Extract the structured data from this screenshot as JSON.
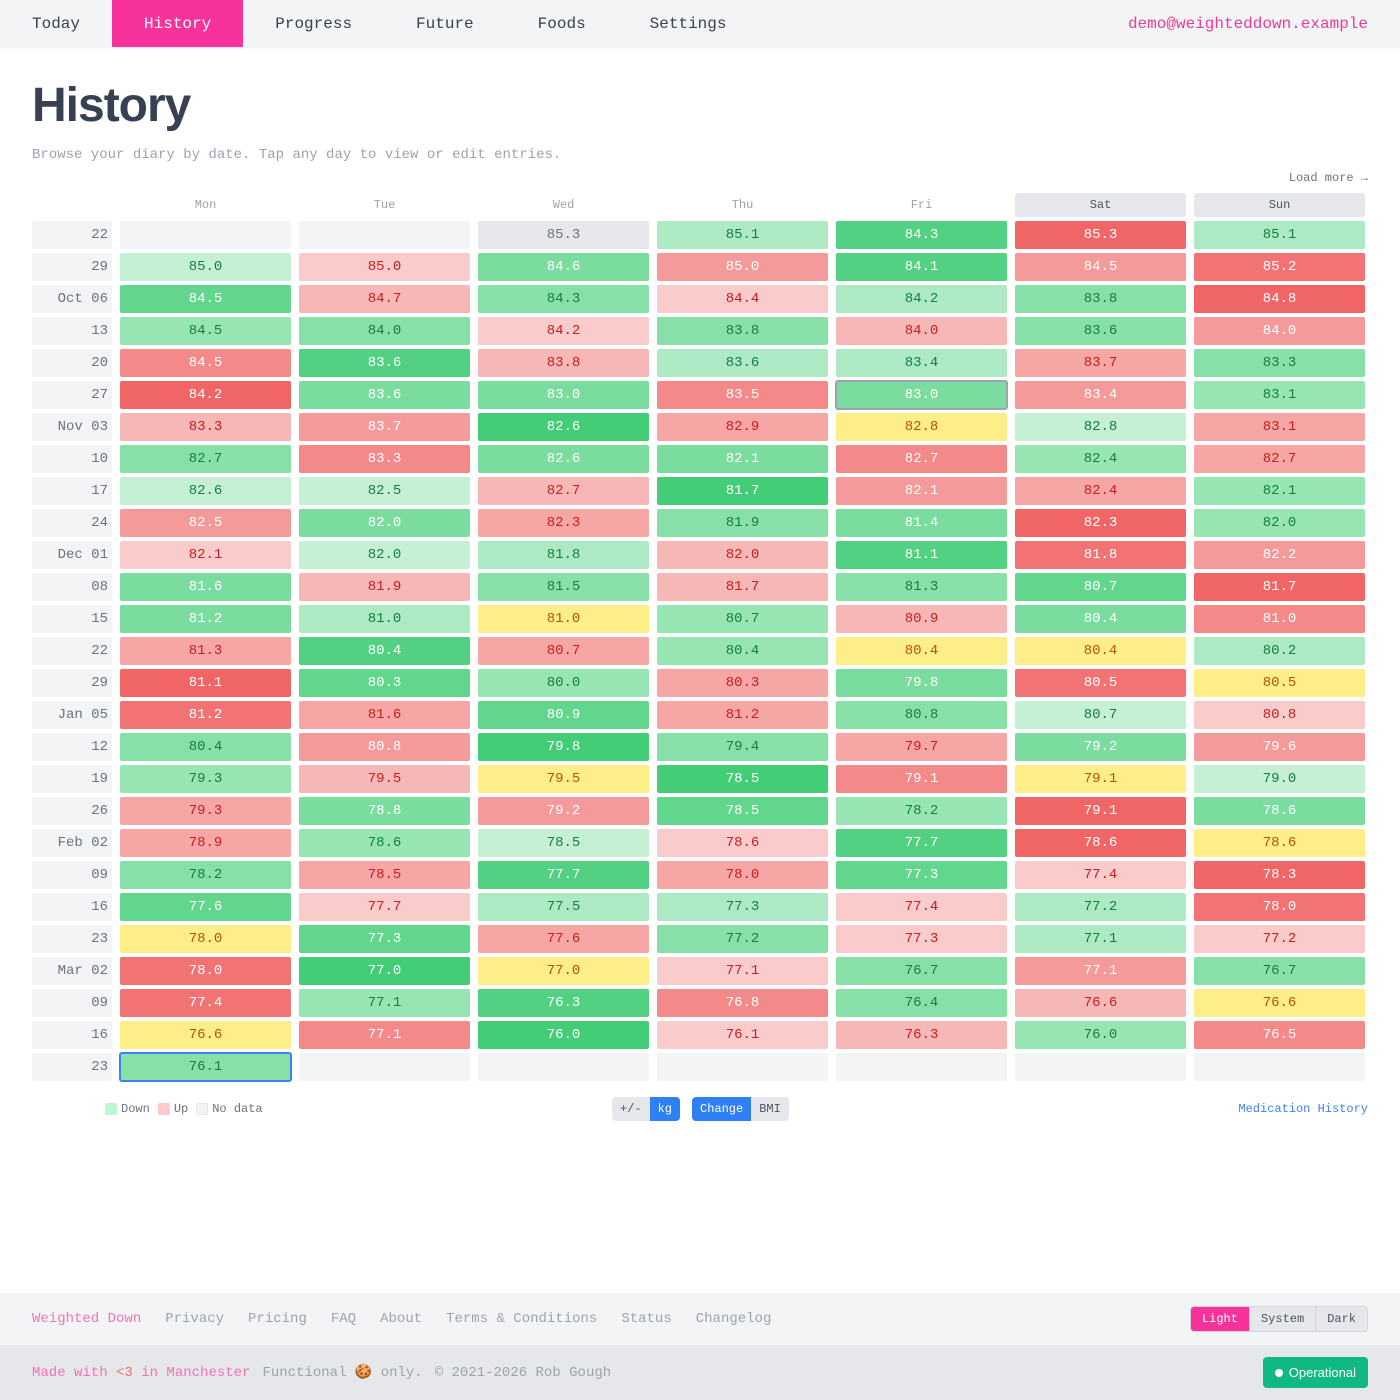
{
  "nav": {
    "items": [
      {
        "label": "Today",
        "active": false
      },
      {
        "label": "History",
        "active": true
      },
      {
        "label": "Progress",
        "active": false
      },
      {
        "label": "Future",
        "active": false
      },
      {
        "label": "Foods",
        "active": false
      },
      {
        "label": "Settings",
        "active": false
      }
    ],
    "user_email": "demo@weighteddown.example"
  },
  "page": {
    "title": "History",
    "subtitle": "Browse your diary by date. Tap any day to view or edit entries.",
    "load_more": "Load more →"
  },
  "grid": {
    "days": [
      "Mon",
      "Tue",
      "Wed",
      "Thu",
      "Fri",
      "Sat",
      "Sun"
    ],
    "weekend_days": [
      "Sat",
      "Sun"
    ],
    "rows": [
      {
        "label": "22",
        "cells": [
          [
            "",
            "e"
          ],
          [
            "",
            "e"
          ],
          [
            "85.3",
            "n"
          ],
          [
            "85.1",
            "g2"
          ],
          [
            "84.3",
            "g7"
          ],
          [
            "85.3",
            "r7"
          ],
          [
            "85.1",
            "g2"
          ]
        ]
      },
      {
        "label": "29",
        "cells": [
          [
            "85.0",
            "g1"
          ],
          [
            "85.0",
            "r1"
          ],
          [
            "84.6",
            "g5"
          ],
          [
            "85.0",
            "r4"
          ],
          [
            "84.1",
            "g7"
          ],
          [
            "84.5",
            "r4"
          ],
          [
            "85.2",
            "r6"
          ]
        ]
      },
      {
        "label": "Oct 06",
        "cells": [
          [
            "84.5",
            "g6"
          ],
          [
            "84.7",
            "r2"
          ],
          [
            "84.3",
            "g4"
          ],
          [
            "84.4",
            "r1"
          ],
          [
            "84.2",
            "g2"
          ],
          [
            "83.8",
            "g4"
          ],
          [
            "84.8",
            "r7"
          ]
        ]
      },
      {
        "label": "13",
        "cells": [
          [
            "84.5",
            "g3"
          ],
          [
            "84.0",
            "g4"
          ],
          [
            "84.2",
            "r1"
          ],
          [
            "83.8",
            "g4"
          ],
          [
            "84.0",
            "r2"
          ],
          [
            "83.6",
            "g4"
          ],
          [
            "84.0",
            "r4"
          ]
        ]
      },
      {
        "label": "20",
        "cells": [
          [
            "84.5",
            "r5"
          ],
          [
            "83.6",
            "g7"
          ],
          [
            "83.8",
            "r2"
          ],
          [
            "83.6",
            "g2"
          ],
          [
            "83.4",
            "g2"
          ],
          [
            "83.7",
            "r3"
          ],
          [
            "83.3",
            "g4"
          ]
        ]
      },
      {
        "label": "27",
        "cells": [
          [
            "84.2",
            "r7"
          ],
          [
            "83.6",
            "g5"
          ],
          [
            "83.0",
            "g5"
          ],
          [
            "83.5",
            "r5"
          ],
          [
            "83.0",
            "g5",
            "selected"
          ],
          [
            "83.4",
            "r4"
          ],
          [
            "83.1",
            "g3"
          ]
        ]
      },
      {
        "label": "Nov 03",
        "cells": [
          [
            "83.3",
            "r2"
          ],
          [
            "83.7",
            "r4"
          ],
          [
            "82.6",
            "g8"
          ],
          [
            "82.9",
            "r3"
          ],
          [
            "82.8",
            "y"
          ],
          [
            "82.8",
            "g1"
          ],
          [
            "83.1",
            "r3"
          ]
        ]
      },
      {
        "label": "10",
        "cells": [
          [
            "82.7",
            "g4"
          ],
          [
            "83.3",
            "r5"
          ],
          [
            "82.6",
            "g5"
          ],
          [
            "82.1",
            "g5"
          ],
          [
            "82.7",
            "r5"
          ],
          [
            "82.4",
            "g3"
          ],
          [
            "82.7",
            "r3"
          ]
        ]
      },
      {
        "label": "17",
        "cells": [
          [
            "82.6",
            "g1"
          ],
          [
            "82.5",
            "g1"
          ],
          [
            "82.7",
            "r2"
          ],
          [
            "81.7",
            "g8"
          ],
          [
            "82.1",
            "r4"
          ],
          [
            "82.4",
            "r3"
          ],
          [
            "82.1",
            "g3"
          ]
        ]
      },
      {
        "label": "24",
        "cells": [
          [
            "82.5",
            "r4"
          ],
          [
            "82.0",
            "g5"
          ],
          [
            "82.3",
            "r3"
          ],
          [
            "81.9",
            "g4"
          ],
          [
            "81.4",
            "g5"
          ],
          [
            "82.3",
            "r7"
          ],
          [
            "82.0",
            "g3"
          ]
        ]
      },
      {
        "label": "Dec 01",
        "cells": [
          [
            "82.1",
            "r1"
          ],
          [
            "82.0",
            "g1"
          ],
          [
            "81.8",
            "g2"
          ],
          [
            "82.0",
            "r2"
          ],
          [
            "81.1",
            "g7"
          ],
          [
            "81.8",
            "r6"
          ],
          [
            "82.2",
            "r4"
          ]
        ]
      },
      {
        "label": "08",
        "cells": [
          [
            "81.6",
            "g5"
          ],
          [
            "81.9",
            "r2"
          ],
          [
            "81.5",
            "g4"
          ],
          [
            "81.7",
            "r2"
          ],
          [
            "81.3",
            "g4"
          ],
          [
            "80.7",
            "g6"
          ],
          [
            "81.7",
            "r7"
          ]
        ]
      },
      {
        "label": "15",
        "cells": [
          [
            "81.2",
            "g5"
          ],
          [
            "81.0",
            "g2"
          ],
          [
            "81.0",
            "y"
          ],
          [
            "80.7",
            "g3"
          ],
          [
            "80.9",
            "r2"
          ],
          [
            "80.4",
            "g5"
          ],
          [
            "81.0",
            "r5"
          ]
        ]
      },
      {
        "label": "22",
        "cells": [
          [
            "81.3",
            "r3"
          ],
          [
            "80.4",
            "g7"
          ],
          [
            "80.7",
            "r3"
          ],
          [
            "80.4",
            "g3"
          ],
          [
            "80.4",
            "y"
          ],
          [
            "80.4",
            "y"
          ],
          [
            "80.2",
            "g2"
          ]
        ]
      },
      {
        "label": "29",
        "cells": [
          [
            "81.1",
            "r7"
          ],
          [
            "80.3",
            "g6"
          ],
          [
            "80.0",
            "g3"
          ],
          [
            "80.3",
            "r3"
          ],
          [
            "79.8",
            "g5"
          ],
          [
            "80.5",
            "r6"
          ],
          [
            "80.5",
            "y"
          ]
        ]
      },
      {
        "label": "Jan 05",
        "cells": [
          [
            "81.2",
            "r6"
          ],
          [
            "81.6",
            "r3"
          ],
          [
            "80.9",
            "g6"
          ],
          [
            "81.2",
            "r3"
          ],
          [
            "80.8",
            "g4"
          ],
          [
            "80.7",
            "g1"
          ],
          [
            "80.8",
            "r1"
          ]
        ]
      },
      {
        "label": "12",
        "cells": [
          [
            "80.4",
            "g4"
          ],
          [
            "80.8",
            "r4"
          ],
          [
            "79.8",
            "g8"
          ],
          [
            "79.4",
            "g4"
          ],
          [
            "79.7",
            "r3"
          ],
          [
            "79.2",
            "g5"
          ],
          [
            "79.6",
            "r4"
          ]
        ]
      },
      {
        "label": "19",
        "cells": [
          [
            "79.3",
            "g3"
          ],
          [
            "79.5",
            "r2"
          ],
          [
            "79.5",
            "y"
          ],
          [
            "78.5",
            "g8"
          ],
          [
            "79.1",
            "r5"
          ],
          [
            "79.1",
            "y"
          ],
          [
            "79.0",
            "g1"
          ]
        ]
      },
      {
        "label": "26",
        "cells": [
          [
            "79.3",
            "r3"
          ],
          [
            "78.8",
            "g5"
          ],
          [
            "79.2",
            "r4"
          ],
          [
            "78.5",
            "g6"
          ],
          [
            "78.2",
            "g3"
          ],
          [
            "79.1",
            "r7"
          ],
          [
            "78.6",
            "g5"
          ]
        ]
      },
      {
        "label": "Feb 02",
        "cells": [
          [
            "78.9",
            "r3"
          ],
          [
            "78.6",
            "g3"
          ],
          [
            "78.5",
            "g1"
          ],
          [
            "78.6",
            "r1"
          ],
          [
            "77.7",
            "g7"
          ],
          [
            "78.6",
            "r7"
          ],
          [
            "78.6",
            "y"
          ]
        ]
      },
      {
        "label": "09",
        "cells": [
          [
            "78.2",
            "g4"
          ],
          [
            "78.5",
            "r3"
          ],
          [
            "77.7",
            "g7"
          ],
          [
            "78.0",
            "r3"
          ],
          [
            "77.3",
            "g6"
          ],
          [
            "77.4",
            "r1"
          ],
          [
            "78.3",
            "r7"
          ]
        ]
      },
      {
        "label": "16",
        "cells": [
          [
            "77.6",
            "g6"
          ],
          [
            "77.7",
            "r1"
          ],
          [
            "77.5",
            "g2"
          ],
          [
            "77.3",
            "g2"
          ],
          [
            "77.4",
            "r1"
          ],
          [
            "77.2",
            "g2"
          ],
          [
            "78.0",
            "r6"
          ]
        ]
      },
      {
        "label": "23",
        "cells": [
          [
            "78.0",
            "y"
          ],
          [
            "77.3",
            "g6"
          ],
          [
            "77.6",
            "r3"
          ],
          [
            "77.2",
            "g4"
          ],
          [
            "77.3",
            "r1"
          ],
          [
            "77.1",
            "g2"
          ],
          [
            "77.2",
            "r1"
          ]
        ]
      },
      {
        "label": "Mar 02",
        "cells": [
          [
            "78.0",
            "r6"
          ],
          [
            "77.0",
            "g8"
          ],
          [
            "77.0",
            "y"
          ],
          [
            "77.1",
            "r1"
          ],
          [
            "76.7",
            "g4"
          ],
          [
            "77.1",
            "r4"
          ],
          [
            "76.7",
            "g4"
          ]
        ]
      },
      {
        "label": "09",
        "cells": [
          [
            "77.4",
            "r6"
          ],
          [
            "77.1",
            "g3"
          ],
          [
            "76.3",
            "g7"
          ],
          [
            "76.8",
            "r5"
          ],
          [
            "76.4",
            "g4"
          ],
          [
            "76.6",
            "r2"
          ],
          [
            "76.6",
            "y"
          ]
        ]
      },
      {
        "label": "16",
        "cells": [
          [
            "76.6",
            "y"
          ],
          [
            "77.1",
            "r5"
          ],
          [
            "76.0",
            "g8"
          ],
          [
            "76.1",
            "r1"
          ],
          [
            "76.3",
            "r2"
          ],
          [
            "76.0",
            "g3"
          ],
          [
            "76.5",
            "r5"
          ]
        ]
      },
      {
        "label": "23",
        "cells": [
          [
            "76.1",
            "g4",
            "today"
          ],
          [
            "",
            "e"
          ],
          [
            "",
            "e"
          ],
          [
            "",
            "e"
          ],
          [
            "",
            "e"
          ],
          [
            "",
            "e"
          ],
          [
            "",
            "e"
          ]
        ]
      }
    ]
  },
  "legend": {
    "items": [
      {
        "label": "Down",
        "color": "#bbf7d0"
      },
      {
        "label": "Up",
        "color": "#fecaca"
      },
      {
        "label": "No data",
        "color": "#f3f4f6"
      }
    ]
  },
  "toggles": {
    "unit": {
      "options": [
        "+/-",
        "kg"
      ],
      "selected": "kg"
    },
    "mode": {
      "options": [
        "Change",
        "BMI"
      ],
      "selected": "Change"
    }
  },
  "medication_link": "Medication History",
  "footer": {
    "brand": "Weighted Down",
    "links": [
      "Privacy",
      "Pricing",
      "FAQ",
      "About",
      "Terms & Conditions",
      "Status",
      "Changelog"
    ],
    "theme": {
      "options": [
        "Light",
        "System",
        "Dark"
      ],
      "selected": "Light"
    },
    "made_with_prefix": "Made with ",
    "made_with_heart": "<3",
    "made_with_suffix": " in Manchester",
    "cookie_note": "Functional 🍪 only.",
    "copyright": "© 2021-2026 Rob Gough",
    "status_label": "Operational"
  },
  "colors": {
    "brand_pink": "#f7329a",
    "accent_blue": "#2f80f5",
    "status_green": "#10b981"
  }
}
